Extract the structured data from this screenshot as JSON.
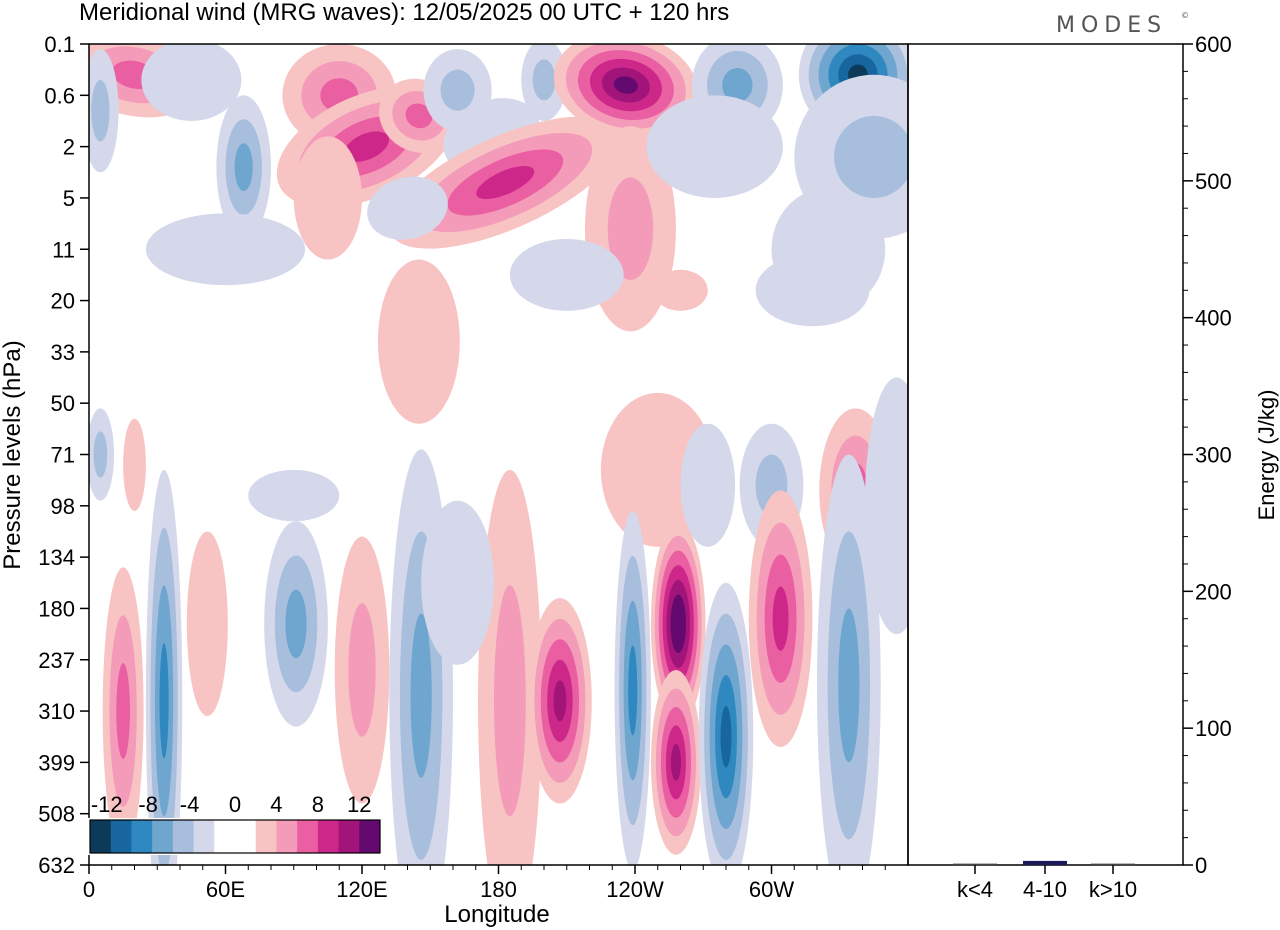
{
  "chart_data": {
    "type": "heatmap",
    "title": "Meridional wind (MRG waves):  12/05/2025  00 UTC  + 120 hrs",
    "brand": "MODES",
    "brand_mark": "©",
    "xlabel": "Longitude",
    "ylabel": "Pressure levels (hPa)",
    "x_ticks": [
      "0",
      "60E",
      "120E",
      "180",
      "120W",
      "60W"
    ],
    "y_ticks": [
      "0.1",
      "0.6",
      "2",
      "5",
      "11",
      "20",
      "33",
      "50",
      "71",
      "98",
      "134",
      "180",
      "237",
      "310",
      "399",
      "508",
      "632"
    ],
    "colorbar": {
      "labels": [
        "-12",
        "-8",
        "-4",
        "0",
        "4",
        "8",
        "12"
      ],
      "colors": [
        "#0c3a58",
        "#1866a0",
        "#2f88c0",
        "#6fa6cf",
        "#a7bedd",
        "#d4d8ea",
        "#ffffff",
        "#ffffff",
        "#f8c3c3",
        "#f39bb9",
        "#ea5ea2",
        "#cc2789",
        "#a1147a",
        "#64096f"
      ]
    },
    "energy_panel": {
      "ylabel": "Energy (J/kg)",
      "ylim": [
        0,
        600
      ],
      "y_ticks": [
        "0",
        "100",
        "200",
        "300",
        "400",
        "500",
        "600"
      ],
      "categories": [
        "k<4",
        "4-10",
        "k>10"
      ],
      "values": [
        1,
        3,
        1
      ]
    },
    "blobs": [
      {
        "lon": 20,
        "lev": 0.6,
        "w": 30,
        "h": 0.8,
        "rot": 12,
        "v": 7
      },
      {
        "lon": 5,
        "lev": 1.3,
        "w": 8,
        "h": 1.2,
        "rot": 0,
        "v": -5
      },
      {
        "lon": 45,
        "lev": 0.7,
        "w": 22,
        "h": 0.8,
        "rot": 0,
        "v": -3
      },
      {
        "lon": 68,
        "lev": 2.4,
        "w": 12,
        "h": 1.4,
        "rot": 0,
        "v": -6
      },
      {
        "lon": 110,
        "lev": 1.0,
        "w": 25,
        "h": 1.0,
        "rot": 0,
        "v": 7
      },
      {
        "lon": 122,
        "lev": 2.0,
        "w": 42,
        "h": 1.0,
        "rot": -24,
        "v": 8
      },
      {
        "lon": 105,
        "lev": 3.0,
        "w": 15,
        "h": 1.2,
        "rot": 0,
        "v": 3
      },
      {
        "lon": 145,
        "lev": 1.4,
        "w": 18,
        "h": 0.7,
        "rot": 28,
        "v": 7
      },
      {
        "lon": 162,
        "lev": 0.9,
        "w": 15,
        "h": 0.8,
        "rot": 0,
        "v": -4
      },
      {
        "lon": 177,
        "lev": 1.8,
        "w": 22,
        "h": 0.7,
        "rot": -22,
        "v": -3
      },
      {
        "lon": 183,
        "lev": 2.7,
        "w": 55,
        "h": 0.9,
        "rot": -24,
        "v": 9
      },
      {
        "lon": 140,
        "lev": 3.2,
        "w": 18,
        "h": 0.6,
        "rot": -15,
        "v": -3
      },
      {
        "lon": 200,
        "lev": 0.7,
        "w": 10,
        "h": 0.8,
        "rot": 0,
        "v": -5
      },
      {
        "lon": 236,
        "lev": 0.8,
        "w": 32,
        "h": 1.0,
        "rot": 12,
        "v": 13
      },
      {
        "lon": 238,
        "lev": 3.6,
        "w": 20,
        "h": 2.0,
        "rot": 0,
        "v": 4
      },
      {
        "lon": 285,
        "lev": 0.8,
        "w": 20,
        "h": 1.0,
        "rot": 0,
        "v": -6
      },
      {
        "lon": 275,
        "lev": 2.0,
        "w": 30,
        "h": 1.0,
        "rot": 0,
        "v": -3
      },
      {
        "lon": 338,
        "lev": 0.6,
        "w": 26,
        "h": 1.2,
        "rot": 0,
        "v": -12
      },
      {
        "lon": 345,
        "lev": 2.2,
        "w": 35,
        "h": 1.6,
        "rot": 0,
        "v": -4
      },
      {
        "lon": 325,
        "lev": 4.0,
        "w": 25,
        "h": 1.2,
        "rot": 0,
        "v": -3
      },
      {
        "lon": 60,
        "lev": 4.0,
        "w": 35,
        "h": 0.7,
        "rot": 0,
        "v": -3
      },
      {
        "lon": 145,
        "lev": 5.8,
        "w": 18,
        "h": 1.6,
        "rot": 0,
        "v": 3
      },
      {
        "lon": 210,
        "lev": 4.5,
        "w": 25,
        "h": 0.7,
        "rot": 0,
        "v": -3
      },
      {
        "lon": 260,
        "lev": 4.8,
        "w": 12,
        "h": 0.4,
        "rot": 0,
        "v": 3
      },
      {
        "lon": 318,
        "lev": 4.8,
        "w": 25,
        "h": 0.7,
        "rot": 0,
        "v": -3
      },
      {
        "lon": 90,
        "lev": 8.8,
        "w": 20,
        "h": 0.5,
        "rot": 0,
        "v": -3
      },
      {
        "lon": 240,
        "lev": 8.0,
        "w": 8,
        "h": 0.6,
        "rot": 0,
        "v": -3
      },
      {
        "lon": 5,
        "lev": 8.0,
        "w": 6,
        "h": 0.9,
        "rot": 0,
        "v": -4
      },
      {
        "lon": 20,
        "lev": 8.2,
        "w": 5,
        "h": 0.9,
        "rot": 0,
        "v": 3
      },
      {
        "lon": 250,
        "lev": 8.3,
        "w": 25,
        "h": 1.5,
        "rot": 0,
        "v": 3
      },
      {
        "lon": 272,
        "lev": 8.6,
        "w": 12,
        "h": 1.2,
        "rot": 0,
        "v": -3
      },
      {
        "lon": 300,
        "lev": 8.6,
        "w": 14,
        "h": 1.2,
        "rot": 0,
        "v": -4
      },
      {
        "lon": 337,
        "lev": 8.7,
        "w": 16,
        "h": 1.6,
        "rot": 0,
        "v": 6
      },
      {
        "lon": 355,
        "lev": 9.0,
        "w": 14,
        "h": 2.5,
        "rot": 0,
        "v": -3
      },
      {
        "lon": 15,
        "lev": 13.0,
        "w": 9,
        "h": 2.8,
        "rot": 0,
        "v": 7
      },
      {
        "lon": 33,
        "lev": 12.8,
        "w": 8,
        "h": 4.5,
        "rot": 0,
        "v": -8
      },
      {
        "lon": 52,
        "lev": 11.3,
        "w": 9,
        "h": 1.8,
        "rot": 0,
        "v": 3
      },
      {
        "lon": 91,
        "lev": 11.3,
        "w": 14,
        "h": 2.0,
        "rot": 0,
        "v": -7
      },
      {
        "lon": 120,
        "lev": 12.2,
        "w": 12,
        "h": 2.6,
        "rot": 0,
        "v": 5
      },
      {
        "lon": 146,
        "lev": 12.7,
        "w": 14,
        "h": 4.8,
        "rot": 0,
        "v": -6
      },
      {
        "lon": 185,
        "lev": 12.8,
        "w": 14,
        "h": 4.5,
        "rot": 0,
        "v": 5
      },
      {
        "lon": 207,
        "lev": 12.8,
        "w": 14,
        "h": 2.0,
        "rot": 0,
        "v": 10
      },
      {
        "lon": 239,
        "lev": 12.6,
        "w": 8,
        "h": 3.5,
        "rot": 0,
        "v": -8
      },
      {
        "lon": 259,
        "lev": 11.3,
        "w": 12,
        "h": 2.0,
        "rot": 0,
        "v": 14
      },
      {
        "lon": 258,
        "lev": 14.0,
        "w": 11,
        "h": 1.8,
        "rot": 0,
        "v": 11
      },
      {
        "lon": 280,
        "lev": 13.5,
        "w": 12,
        "h": 3.0,
        "rot": 0,
        "v": -11
      },
      {
        "lon": 304,
        "lev": 11.2,
        "w": 14,
        "h": 2.5,
        "rot": 0,
        "v": 8
      },
      {
        "lon": 334,
        "lev": 12.5,
        "w": 14,
        "h": 4.5,
        "rot": 0,
        "v": -6
      },
      {
        "lon": 162,
        "lev": 10.5,
        "w": 16,
        "h": 1.6,
        "rot": 0,
        "v": -3
      }
    ]
  }
}
